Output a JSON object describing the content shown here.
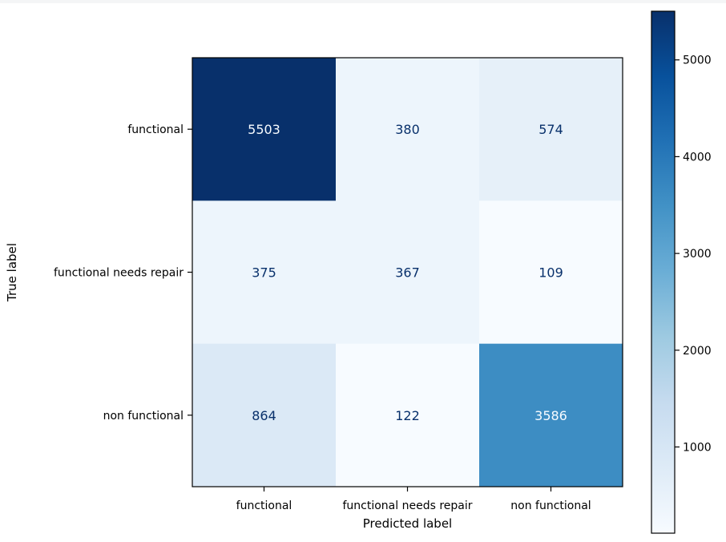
{
  "chart_data": {
    "type": "heatmap",
    "title": "",
    "xlabel": "Predicted label",
    "ylabel": "True label",
    "x_categories": [
      "functional",
      "functional needs repair",
      "non functional"
    ],
    "y_categories": [
      "functional",
      "functional needs repair",
      "non functional"
    ],
    "matrix": [
      [
        5503,
        380,
        574
      ],
      [
        375,
        367,
        109
      ],
      [
        864,
        122,
        3586
      ]
    ],
    "colormap": "Blues",
    "value_range": [
      109,
      5503
    ],
    "colorbar": {
      "ticks": [
        1000,
        2000,
        3000,
        4000,
        5000
      ],
      "tick_labels": [
        "1000",
        "2000",
        "3000",
        "4000",
        "5000"
      ]
    },
    "grid": false,
    "legend": "colorbar on right"
  },
  "colors": {
    "axis": "#000000",
    "text_light": "#f7fbff",
    "text_dark": "#08306b"
  }
}
